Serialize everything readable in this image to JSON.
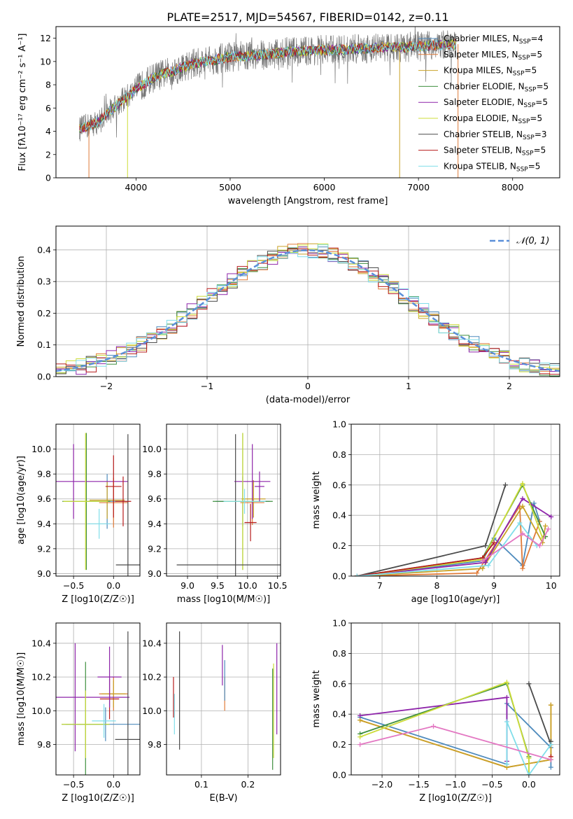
{
  "figure": {
    "title": "PLATE=2517, MJD=54567, FIBERID=0142, z=0.11"
  },
  "series_styles": [
    {
      "name": "Chabrier MILES",
      "nssp": "4",
      "color": "#4f8bbd"
    },
    {
      "name": "Salpeter MILES",
      "nssp": "5",
      "color": "#e07b39"
    },
    {
      "name": "Kroupa MILES",
      "nssp": "5",
      "color": "#c9a227"
    },
    {
      "name": "Chabrier ELODIE",
      "nssp": "5",
      "color": "#3f8f3f"
    },
    {
      "name": "Salpeter ELODIE",
      "nssp": "5",
      "color": "#8e24aa"
    },
    {
      "name": "Kroupa ELODIE",
      "nssp": "5",
      "color": "#cddc39"
    },
    {
      "name": "Chabrier STELIB",
      "nssp": "3",
      "color": "#4a4a4a"
    },
    {
      "name": "Salpeter STELIB",
      "nssp": "5",
      "color": "#b71c1c"
    },
    {
      "name": "Kroupa STELIB",
      "nssp": "5",
      "color": "#80deea"
    }
  ],
  "chart_data": [
    {
      "id": "spectrum",
      "type": "line",
      "title": "PLATE=2517, MJD=54567, FIBERID=0142, z=0.11",
      "xlabel": "wavelength [Angstrom, rest frame]",
      "ylabel": "Flux [fλ10⁻¹⁷ erg cm⁻² s⁻¹ A⁻¹]",
      "xlim": [
        3150,
        8500
      ],
      "ylim": [
        0,
        13
      ],
      "xticks": [
        4000,
        5000,
        6000,
        7000,
        8000
      ],
      "yticks": [
        0,
        2,
        4,
        6,
        8,
        10,
        12
      ],
      "grid": false,
      "legend": "right",
      "legend_entries": [
        "Chabrier MILES, N_SSP=4",
        "Salpeter MILES, N_SSP=5",
        "Kroupa MILES, N_SSP=5",
        "Chabrier ELODIE, N_SSP=5",
        "Salpeter ELODIE, N_SSP=5",
        "Kroupa ELODIE, N_SSP=5",
        "Chabrier STELIB, N_SSP=3",
        "Salpeter STELIB, N_SSP=5",
        "Kroupa STELIB, N_SSP=5"
      ],
      "continuum": {
        "x": [
          3400,
          3600,
          3800,
          4000,
          4200,
          4400,
          4600,
          4800,
          5000,
          5200,
          5400,
          5600,
          5800,
          6000,
          6200,
          6400,
          6600,
          6800,
          7000,
          7200,
          7400,
          7600,
          7800,
          8000,
          8200
        ],
        "y": [
          4.2,
          4.8,
          6.3,
          7.6,
          8.7,
          9.2,
          9.8,
          10.1,
          10.4,
          10.5,
          10.6,
          10.8,
          10.9,
          11.0,
          11.0,
          11.1,
          11.2,
          11.2,
          11.3,
          11.4,
          11.5,
          11.4,
          11.5,
          11.6,
          11.7
        ]
      },
      "observed_x_range": [
        3400,
        7400
      ],
      "model_dips": [
        {
          "x": 3500,
          "series": "Salpeter MILES"
        },
        {
          "x": 3910,
          "series": "Kroupa ELODIE"
        },
        {
          "x": 6800,
          "series": "Kroupa MILES"
        },
        {
          "x": 7420,
          "series": "Salpeter MILES"
        }
      ]
    },
    {
      "id": "residuals",
      "type": "line",
      "xlabel": "(data-model)/error",
      "ylabel": "Normed distribution",
      "xlim": [
        -2.5,
        2.5
      ],
      "ylim": [
        0,
        0.475
      ],
      "xticks": [
        -2,
        -1,
        0,
        1,
        2
      ],
      "yticks": [
        0.0,
        0.1,
        0.2,
        0.3,
        0.4
      ],
      "grid": true,
      "legend": "top-right",
      "legend_entries": [
        "N(0,1)"
      ],
      "histogram_bin_width": 0.1
    },
    {
      "id": "age-vs-z",
      "type": "scatter",
      "xlabel": "Z [log10(Z/Z☉)]",
      "ylabel": "age  [log10(age/yr)]",
      "xlim": [
        -0.72,
        0.33
      ],
      "ylim": [
        8.98,
        10.2
      ],
      "xticks": [
        -0.5,
        0.0
      ],
      "yticks": [
        9.0,
        9.2,
        9.4,
        9.6,
        9.8,
        10.0
      ],
      "grid": true,
      "points": [
        {
          "series": "Chabrier MILES",
          "x": -0.08,
          "y": 9.58,
          "xerr": 0.25,
          "yerr": 0.22
        },
        {
          "series": "Salpeter MILES",
          "x": 0.0,
          "y": 9.57,
          "xerr": 0.18,
          "yerr": 0.2
        },
        {
          "series": "Kroupa MILES",
          "x": -0.08,
          "y": 9.59,
          "xerr": 0.22,
          "yerr": 0.15
        },
        {
          "series": "Chabrier ELODIE",
          "x": -0.34,
          "y": 9.58,
          "xerr": 0.3,
          "yerr": 0.55
        },
        {
          "series": "Salpeter ELODIE",
          "x": -0.5,
          "y": 9.74,
          "xerr": 0.68,
          "yerr": 0.3
        },
        {
          "series": "Kroupa ELODIE",
          "x": -0.35,
          "y": 9.58,
          "xerr": 0.28,
          "yerr": 0.55
        },
        {
          "series": "Chabrier STELIB",
          "x": 0.18,
          "y": 9.07,
          "xerr": 0.15,
          "yerr": 1.05
        },
        {
          "series": "Salpeter STELIB",
          "x": 0.12,
          "y": 9.58,
          "xerr": 0.1,
          "yerr": 0.2
        },
        {
          "series": "Kroupa STELIB",
          "x": -0.18,
          "y": 9.4,
          "xerr": 0.14,
          "yerr": 0.12
        },
        {
          "series": "Salpeter STELIB",
          "x": 0.0,
          "y": 9.7,
          "xerr": 0.1,
          "yerr": 0.25
        }
      ]
    },
    {
      "id": "age-vs-mass",
      "type": "scatter",
      "xlabel": "mass [log10(M/M☉)]",
      "ylabel": "",
      "xlim": [
        8.65,
        10.55
      ],
      "ylim": [
        8.98,
        10.2
      ],
      "xticks": [
        9.0,
        9.5,
        10.0,
        10.5
      ],
      "yticks": [
        9.0,
        9.2,
        9.4,
        9.6,
        9.8,
        10.0
      ],
      "grid": true,
      "points": [
        {
          "series": "Chabrier MILES",
          "x": 9.92,
          "y": 9.58,
          "xerr": 0.45,
          "yerr": 0.2
        },
        {
          "series": "Salpeter MILES",
          "x": 10.08,
          "y": 9.57,
          "xerr": 0.2,
          "yerr": 0.18
        },
        {
          "series": "Kroupa MILES",
          "x": 10.1,
          "y": 9.6,
          "xerr": 0.2,
          "yerr": 0.15
        },
        {
          "series": "Chabrier ELODIE",
          "x": 9.92,
          "y": 9.58,
          "xerr": 0.5,
          "yerr": 0.55
        },
        {
          "series": "Salpeter ELODIE",
          "x": 10.08,
          "y": 9.74,
          "xerr": 0.3,
          "yerr": 0.3
        },
        {
          "series": "Kroupa ELODIE",
          "x": 9.92,
          "y": 9.58,
          "xerr": 0.3,
          "yerr": 0.55
        },
        {
          "series": "Chabrier STELIB",
          "x": 9.8,
          "y": 9.07,
          "xerr": 0.98,
          "yerr": 1.05
        },
        {
          "series": "Salpeter STELIB",
          "x": 10.05,
          "y": 9.41,
          "xerr": 0.1,
          "yerr": 0.15
        },
        {
          "series": "Kroupa STELIB",
          "x": 9.95,
          "y": 9.58,
          "xerr": 0.35,
          "yerr": 0.1
        },
        {
          "series": "Salpeter ELODIE",
          "x": 10.2,
          "y": 9.7,
          "xerr": 0.08,
          "yerr": 0.12
        }
      ]
    },
    {
      "id": "massweight-vs-age",
      "type": "line",
      "xlabel": "age  [log10(age/yr)]",
      "ylabel": "mass weight",
      "xlim": [
        6.5,
        10.15
      ],
      "ylim": [
        0,
        1
      ],
      "xticks": [
        7,
        8,
        9,
        10
      ],
      "yticks": [
        0.0,
        0.2,
        0.4,
        0.6,
        0.8,
        1.0
      ],
      "grid": true,
      "series": [
        {
          "name": "Chabrier MILES",
          "x": [
            6.6,
            8.8,
            9.0,
            9.5,
            9.7,
            9.8
          ],
          "y": [
            0.0,
            0.1,
            0.25,
            0.07,
            0.48,
            0.36
          ]
        },
        {
          "name": "Salpeter MILES",
          "x": [
            6.6,
            8.7,
            9.45,
            9.5,
            9.8
          ],
          "y": [
            0.0,
            0.02,
            0.46,
            0.05,
            0.36
          ]
        },
        {
          "name": "Kroupa MILES",
          "x": [
            6.6,
            8.8,
            9.5,
            9.85,
            9.9
          ],
          "y": [
            0.0,
            0.05,
            0.46,
            0.22,
            0.33
          ]
        },
        {
          "name": "Chabrier ELODIE",
          "x": [
            6.6,
            8.8,
            9.5,
            9.65,
            9.9
          ],
          "y": [
            0.0,
            0.12,
            0.6,
            0.47,
            0.26
          ]
        },
        {
          "name": "Salpeter ELODIE",
          "x": [
            6.6,
            8.85,
            9.5,
            10.0
          ],
          "y": [
            0.0,
            0.09,
            0.51,
            0.39
          ]
        },
        {
          "name": "Kroupa ELODIE",
          "x": [
            6.6,
            8.8,
            9.5,
            9.85
          ],
          "y": [
            0.0,
            0.11,
            0.61,
            0.25
          ]
        },
        {
          "name": "Chabrier STELIB",
          "x": [
            6.6,
            8.85,
            9.2
          ],
          "y": [
            0.0,
            0.2,
            0.6
          ]
        },
        {
          "name": "Salpeter STELIB",
          "x": [
            6.6,
            8.8,
            9.0
          ],
          "y": [
            0.0,
            0.12,
            0.22
          ]
        },
        {
          "name": "Kroupa STELIB",
          "x": [
            6.6,
            8.9,
            9.45,
            9.75
          ],
          "y": [
            0.0,
            0.07,
            0.35,
            0.2
          ]
        }
      ],
      "extra_series": [
        {
          "name": "Salpeter ELODIE pink",
          "color": "#e377c2",
          "x": [
            8.8,
            9.5,
            9.8,
            9.95
          ],
          "y": [
            0.1,
            0.28,
            0.2,
            0.31
          ]
        }
      ]
    },
    {
      "id": "mass-vs-z",
      "type": "scatter",
      "xlabel": "Z [log10(Z/Z☉)]",
      "ylabel": "mass [log10(M/M☉)]",
      "xlim": [
        -0.72,
        0.33
      ],
      "ylim": [
        9.62,
        10.52
      ],
      "xticks": [
        -0.5,
        0.0
      ],
      "yticks": [
        9.8,
        10.0,
        10.2,
        10.4
      ],
      "grid": true,
      "points": [
        {
          "series": "Chabrier MILES",
          "x": -0.1,
          "y": 9.92,
          "xerr": 0.5,
          "yerr": 0.1
        },
        {
          "series": "Salpeter MILES",
          "x": 0.0,
          "y": 10.1,
          "xerr": 0.18,
          "yerr": 0.1
        },
        {
          "series": "Kroupa MILES",
          "x": 0.0,
          "y": 10.1,
          "xerr": 0.15,
          "yerr": 0.08
        },
        {
          "series": "Chabrier ELODIE",
          "x": -0.35,
          "y": 9.92,
          "xerr": 0.3,
          "yerr": 0.37
        },
        {
          "series": "Salpeter ELODIE",
          "x": -0.48,
          "y": 10.08,
          "xerr": 0.68,
          "yerr": 0.32
        },
        {
          "series": "Kroupa ELODIE",
          "x": -0.35,
          "y": 9.92,
          "xerr": 0.3,
          "yerr": 0.2
        },
        {
          "series": "Chabrier STELIB",
          "x": 0.18,
          "y": 9.83,
          "xerr": 0.16,
          "yerr": 0.64
        },
        {
          "series": "Salpeter STELIB",
          "x": -0.05,
          "y": 10.07,
          "xerr": 0.12,
          "yerr": 0.12
        },
        {
          "series": "Kroupa STELIB",
          "x": -0.12,
          "y": 9.94,
          "xerr": 0.15,
          "yerr": 0.1
        },
        {
          "series": "Salpeter ELODIE",
          "x": -0.05,
          "y": 10.2,
          "xerr": 0.15,
          "yerr": 0.18
        }
      ]
    },
    {
      "id": "mass-vs-ebv",
      "type": "scatter",
      "xlabel": "E(B-V)",
      "ylabel": "",
      "xlim": [
        0.025,
        0.27
      ],
      "ylim": [
        9.62,
        10.52
      ],
      "xticks": [
        0.1,
        0.2
      ],
      "yticks": [
        9.8,
        10.0,
        10.2,
        10.4
      ],
      "grid": true,
      "points": [
        {
          "series": "Salpeter STELIB",
          "x": 0.04,
          "y": 10.08,
          "yerr": 0.12
        },
        {
          "series": "Kroupa STELIB",
          "x": 0.042,
          "y": 9.98,
          "yerr": 0.12
        },
        {
          "series": "Chabrier STELIB",
          "x": 0.053,
          "y": 10.12,
          "yerr": 0.35
        },
        {
          "series": "Salpeter ELODIE",
          "x": 0.145,
          "y": 10.27,
          "yerr": 0.12
        },
        {
          "series": "Salpeter MILES",
          "x": 0.15,
          "y": 10.1,
          "yerr": 0.1
        },
        {
          "series": "Chabrier MILES",
          "x": 0.15,
          "y": 10.18,
          "yerr": 0.12
        },
        {
          "series": "Kroupa ELODIE",
          "x": 0.255,
          "y": 10.0,
          "yerr": 0.28
        },
        {
          "series": "Chabrier ELODIE",
          "x": 0.253,
          "y": 9.95,
          "yerr": 0.3
        },
        {
          "series": "Salpeter ELODIE",
          "x": 0.262,
          "y": 10.13,
          "yerr": 0.27
        }
      ]
    },
    {
      "id": "massweight-vs-z",
      "type": "line",
      "xlabel": "Z [log10(Z/Z☉)]",
      "ylabel": "mass weight",
      "xlim": [
        -2.42,
        0.42
      ],
      "ylim": [
        0,
        1
      ],
      "xticks": [
        -2.0,
        -1.5,
        -1.0,
        -0.5,
        0.0
      ],
      "yticks": [
        0.0,
        0.2,
        0.4,
        0.6,
        0.8,
        1.0
      ],
      "grid": true,
      "series": [
        {
          "name": "Chabrier MILES",
          "x": [
            -2.3,
            -0.3,
            -0.3,
            0.3,
            0.3
          ],
          "y": [
            0.38,
            0.07,
            0.47,
            0.18,
            0.05
          ]
        },
        {
          "name": "Salpeter MILES",
          "x": [
            -2.3,
            -0.3,
            0.3,
            0.3
          ],
          "y": [
            0.36,
            0.05,
            0.1,
            0.46
          ]
        },
        {
          "name": "Kroupa MILES",
          "x": [
            -2.3,
            -0.3,
            0.3,
            0.3
          ],
          "y": [
            0.36,
            0.05,
            0.1,
            0.46
          ]
        },
        {
          "name": "Chabrier ELODIE",
          "x": [
            -2.3,
            -0.3,
            0.0,
            0.0
          ],
          "y": [
            0.27,
            0.6,
            0.12,
            0.0
          ]
        },
        {
          "name": "Salpeter ELODIE",
          "x": [
            -2.3,
            -0.3,
            -0.3
          ],
          "y": [
            0.39,
            0.51,
            0.09
          ]
        },
        {
          "name": "Kroupa ELODIE",
          "x": [
            -2.3,
            -0.3,
            0.0,
            0.0
          ],
          "y": [
            0.25,
            0.61,
            0.11,
            0.0
          ]
        },
        {
          "name": "Chabrier STELIB",
          "x": [
            0.0,
            0.3,
            0.3
          ],
          "y": [
            0.6,
            0.2,
            0.22
          ]
        },
        {
          "name": "Salpeter STELIB",
          "x": [
            0.3
          ],
          "y": [
            0.12
          ]
        },
        {
          "name": "Kroupa STELIB",
          "x": [
            -0.3,
            -0.3,
            0.0,
            0.3
          ],
          "y": [
            0.07,
            0.35,
            0.0,
            0.2
          ]
        }
      ],
      "extra_series": [
        {
          "name": "pink",
          "color": "#e377c2",
          "x": [
            -2.3,
            -1.3,
            0.3
          ],
          "y": [
            0.2,
            0.32,
            0.1
          ]
        }
      ]
    }
  ]
}
